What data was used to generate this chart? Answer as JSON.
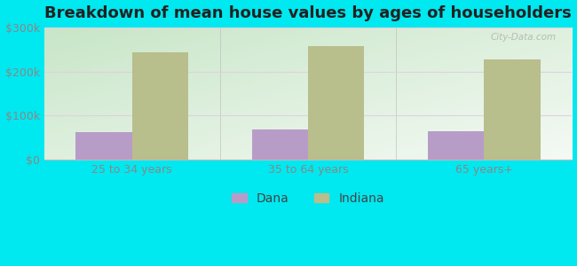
{
  "title": "Breakdown of mean house values by ages of householders",
  "categories": [
    "25 to 34 years",
    "35 to 64 years",
    "65 years+"
  ],
  "dana_values": [
    62000,
    68000,
    65000
  ],
  "indiana_values": [
    243000,
    258000,
    228000
  ],
  "dana_color": "#b89cc8",
  "indiana_color": "#b8be8c",
  "background_color": "#00e8f0",
  "ylim": [
    0,
    300000
  ],
  "yticks": [
    0,
    100000,
    200000,
    300000
  ],
  "ytick_labels": [
    "$0",
    "$100k",
    "$200k",
    "$300k"
  ],
  "bar_width": 0.32,
  "legend_labels": [
    "Dana",
    "Indiana"
  ],
  "title_fontsize": 13,
  "tick_fontsize": 9,
  "legend_fontsize": 10,
  "grid_color": "#dddddd",
  "tick_color": "#888888",
  "divider_color": "#bbbbbb"
}
